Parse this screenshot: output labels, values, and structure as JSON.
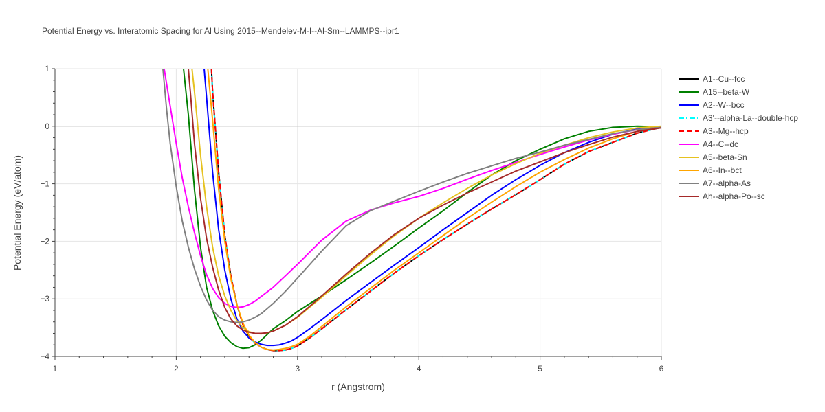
{
  "chart_data": {
    "type": "line",
    "title": "Potential Energy vs. Interatomic Spacing for Al Using 2015--Mendelev-M-I--Al-Sm--LAMMPS--ipr1",
    "xlabel": "r (Angstrom)",
    "ylabel": "Potential Energy (eV/atom)",
    "xlim": [
      1,
      6
    ],
    "ylim": [
      -4,
      1
    ],
    "xticks": [
      1,
      2,
      3,
      4,
      5,
      6
    ],
    "yticks": [
      1,
      0,
      -1,
      -2,
      -3,
      -4
    ],
    "grid": true,
    "legend_position": "right",
    "series": [
      {
        "name": "A1--Cu--fcc",
        "color": "#000000",
        "dash": "solid",
        "x": [
          2.29,
          2.3,
          2.35,
          2.4,
          2.45,
          2.5,
          2.55,
          2.6,
          2.65,
          2.7,
          2.75,
          2.8,
          2.85,
          2.9,
          2.95,
          3.0,
          3.1,
          3.2,
          3.4,
          3.6,
          3.8,
          4.0,
          4.2,
          4.4,
          4.6,
          4.8,
          5.0,
          5.2,
          5.4,
          5.6,
          5.8,
          6.0
        ],
        "y": [
          1.0,
          0.6,
          -0.8,
          -1.9,
          -2.6,
          -3.1,
          -3.45,
          -3.65,
          -3.77,
          -3.84,
          -3.88,
          -3.9,
          -3.9,
          -3.89,
          -3.86,
          -3.82,
          -3.68,
          -3.52,
          -3.19,
          -2.87,
          -2.55,
          -2.25,
          -1.97,
          -1.7,
          -1.44,
          -1.19,
          -0.93,
          -0.66,
          -0.44,
          -0.28,
          -0.12,
          -0.02
        ]
      },
      {
        "name": "A15--beta-W",
        "color": "#008000",
        "dash": "solid",
        "x": [
          2.06,
          2.1,
          2.15,
          2.2,
          2.25,
          2.3,
          2.35,
          2.4,
          2.45,
          2.5,
          2.55,
          2.6,
          2.65,
          2.7,
          2.75,
          2.8,
          2.9,
          3.0,
          3.2,
          3.4,
          3.6,
          3.8,
          4.0,
          4.2,
          4.4,
          4.6,
          4.8,
          5.0,
          5.2,
          5.4,
          5.6,
          5.8,
          6.0
        ],
        "y": [
          1.0,
          0.2,
          -1.1,
          -2.1,
          -2.8,
          -3.2,
          -3.47,
          -3.65,
          -3.76,
          -3.83,
          -3.86,
          -3.85,
          -3.8,
          -3.72,
          -3.62,
          -3.52,
          -3.38,
          -3.22,
          -2.95,
          -2.67,
          -2.38,
          -2.08,
          -1.77,
          -1.47,
          -1.15,
          -0.85,
          -0.6,
          -0.4,
          -0.22,
          -0.09,
          -0.02,
          0.0,
          -0.01
        ]
      },
      {
        "name": "A2--W--bcc",
        "color": "#0000ff",
        "dash": "solid",
        "x": [
          2.23,
          2.25,
          2.3,
          2.35,
          2.4,
          2.45,
          2.5,
          2.55,
          2.6,
          2.65,
          2.7,
          2.75,
          2.8,
          2.85,
          2.9,
          2.95,
          3.0,
          3.1,
          3.2,
          3.4,
          3.6,
          3.8,
          4.0,
          4.2,
          4.4,
          4.6,
          4.8,
          5.0,
          5.2,
          5.4,
          5.6,
          5.8,
          6.0
        ],
        "y": [
          1.0,
          0.5,
          -0.8,
          -1.8,
          -2.5,
          -3.0,
          -3.35,
          -3.56,
          -3.68,
          -3.75,
          -3.79,
          -3.81,
          -3.81,
          -3.8,
          -3.77,
          -3.73,
          -3.67,
          -3.52,
          -3.36,
          -3.03,
          -2.72,
          -2.41,
          -2.11,
          -1.8,
          -1.5,
          -1.2,
          -0.93,
          -0.68,
          -0.46,
          -0.28,
          -0.14,
          -0.05,
          -0.01
        ]
      },
      {
        "name": "A3'--alpha-La--double-hcp",
        "color": "#00ffff",
        "dash": "dashdot",
        "x": [
          2.29,
          2.3,
          2.35,
          2.4,
          2.45,
          2.5,
          2.55,
          2.6,
          2.65,
          2.7,
          2.75,
          2.8,
          2.85,
          2.9,
          2.95,
          3.0,
          3.1,
          3.2,
          3.4,
          3.6,
          3.8,
          4.0,
          4.2,
          4.4,
          4.6,
          4.8,
          5.0,
          5.2,
          5.4,
          5.6,
          5.8,
          6.0
        ],
        "y": [
          1.0,
          0.6,
          -0.8,
          -1.9,
          -2.6,
          -3.1,
          -3.45,
          -3.65,
          -3.77,
          -3.84,
          -3.88,
          -3.9,
          -3.9,
          -3.89,
          -3.86,
          -3.82,
          -3.68,
          -3.52,
          -3.19,
          -2.87,
          -2.55,
          -2.25,
          -1.97,
          -1.7,
          -1.44,
          -1.19,
          -0.93,
          -0.66,
          -0.44,
          -0.28,
          -0.12,
          -0.02
        ]
      },
      {
        "name": "A3--Mg--hcp",
        "color": "#ff0000",
        "dash": "dash",
        "x": [
          2.29,
          2.3,
          2.35,
          2.4,
          2.45,
          2.5,
          2.55,
          2.6,
          2.65,
          2.7,
          2.75,
          2.8,
          2.85,
          2.9,
          2.95,
          3.0,
          3.1,
          3.2,
          3.4,
          3.6,
          3.8,
          4.0,
          4.2,
          4.4,
          4.6,
          4.8,
          5.0,
          5.2,
          5.4,
          5.6,
          5.8,
          6.0
        ],
        "y": [
          1.0,
          0.6,
          -0.8,
          -1.9,
          -2.6,
          -3.1,
          -3.45,
          -3.65,
          -3.77,
          -3.84,
          -3.88,
          -3.9,
          -3.9,
          -3.89,
          -3.86,
          -3.82,
          -3.68,
          -3.52,
          -3.19,
          -2.87,
          -2.55,
          -2.25,
          -1.97,
          -1.7,
          -1.44,
          -1.19,
          -0.93,
          -0.66,
          -0.44,
          -0.28,
          -0.12,
          -0.02
        ]
      },
      {
        "name": "A4--C--dc",
        "color": "#ff00ff",
        "dash": "solid",
        "x": [
          1.9,
          1.95,
          2.0,
          2.05,
          2.1,
          2.15,
          2.2,
          2.25,
          2.3,
          2.35,
          2.4,
          2.45,
          2.5,
          2.55,
          2.6,
          2.65,
          2.7,
          2.8,
          2.9,
          3.0,
          3.1,
          3.2,
          3.4,
          3.6,
          3.8,
          4.0,
          4.2,
          4.4,
          4.6,
          4.8,
          5.0,
          5.2,
          5.4,
          5.6,
          5.8,
          6.0
        ],
        "y": [
          1.0,
          0.35,
          -0.3,
          -0.9,
          -1.4,
          -1.85,
          -2.25,
          -2.58,
          -2.82,
          -2.98,
          -3.08,
          -3.13,
          -3.15,
          -3.14,
          -3.1,
          -3.04,
          -2.96,
          -2.8,
          -2.6,
          -2.4,
          -2.19,
          -1.98,
          -1.65,
          -1.46,
          -1.33,
          -1.22,
          -1.08,
          -0.92,
          -0.77,
          -0.63,
          -0.49,
          -0.36,
          -0.24,
          -0.14,
          -0.06,
          -0.02
        ]
      },
      {
        "name": "A5--beta-Sn",
        "color": "#e6c220",
        "dash": "solid",
        "x": [
          2.13,
          2.15,
          2.2,
          2.25,
          2.3,
          2.35,
          2.4,
          2.45,
          2.5,
          2.55,
          2.6,
          2.65,
          2.7,
          2.75,
          2.8,
          2.9,
          3.0,
          3.2,
          3.4,
          3.6,
          3.8,
          4.0,
          4.2,
          4.4,
          4.6,
          4.8,
          5.0,
          5.2,
          5.4,
          5.6,
          5.8,
          6.0
        ],
        "y": [
          1.0,
          0.6,
          -0.5,
          -1.4,
          -2.1,
          -2.6,
          -2.95,
          -3.2,
          -3.38,
          -3.5,
          -3.57,
          -3.6,
          -3.61,
          -3.59,
          -3.56,
          -3.46,
          -3.32,
          -2.97,
          -2.6,
          -2.24,
          -1.9,
          -1.6,
          -1.33,
          -1.08,
          -0.85,
          -0.65,
          -0.47,
          -0.33,
          -0.2,
          -0.1,
          -0.03,
          0.0
        ]
      },
      {
        "name": "A6--In--bct",
        "color": "#ffa500",
        "dash": "solid",
        "x": [
          2.26,
          2.3,
          2.35,
          2.4,
          2.45,
          2.5,
          2.55,
          2.6,
          2.65,
          2.7,
          2.75,
          2.8,
          2.85,
          2.9,
          2.95,
          3.0,
          3.1,
          3.2,
          3.4,
          3.6,
          3.8,
          4.0,
          4.2,
          4.4,
          4.6,
          4.8,
          5.0,
          5.2,
          5.4,
          5.6,
          5.8,
          6.0
        ],
        "y": [
          1.0,
          0.1,
          -1.1,
          -2.0,
          -2.65,
          -3.1,
          -3.42,
          -3.63,
          -3.76,
          -3.84,
          -3.88,
          -3.89,
          -3.88,
          -3.86,
          -3.83,
          -3.79,
          -3.65,
          -3.48,
          -3.14,
          -2.82,
          -2.5,
          -2.2,
          -1.9,
          -1.6,
          -1.32,
          -1.05,
          -0.8,
          -0.58,
          -0.38,
          -0.22,
          -0.09,
          -0.02
        ]
      },
      {
        "name": "A7--alpha-As",
        "color": "#808080",
        "dash": "solid",
        "x": [
          1.89,
          1.92,
          1.95,
          2.0,
          2.05,
          2.1,
          2.15,
          2.2,
          2.25,
          2.3,
          2.35,
          2.4,
          2.45,
          2.5,
          2.55,
          2.6,
          2.65,
          2.7,
          2.8,
          2.9,
          3.0,
          3.2,
          3.4,
          3.6,
          3.8,
          4.0,
          4.2,
          4.4,
          4.6,
          4.8,
          5.0,
          5.2,
          5.4,
          5.6,
          5.8,
          6.0
        ],
        "y": [
          1.0,
          0.3,
          -0.3,
          -1.05,
          -1.65,
          -2.1,
          -2.48,
          -2.78,
          -3.02,
          -3.2,
          -3.31,
          -3.37,
          -3.4,
          -3.41,
          -3.4,
          -3.37,
          -3.32,
          -3.26,
          -3.08,
          -2.87,
          -2.64,
          -2.17,
          -1.73,
          -1.47,
          -1.3,
          -1.13,
          -0.97,
          -0.82,
          -0.69,
          -0.56,
          -0.45,
          -0.33,
          -0.23,
          -0.13,
          -0.06,
          -0.02
        ]
      },
      {
        "name": "Ah--alpha-Po--sc",
        "color": "#a52a2a",
        "dash": "solid",
        "x": [
          2.1,
          2.12,
          2.15,
          2.2,
          2.25,
          2.3,
          2.35,
          2.4,
          2.45,
          2.5,
          2.55,
          2.6,
          2.65,
          2.7,
          2.75,
          2.8,
          2.9,
          3.0,
          3.2,
          3.4,
          3.6,
          3.8,
          4.0,
          4.2,
          4.4,
          4.6,
          4.8,
          5.0,
          5.2,
          5.4,
          5.6,
          5.8,
          6.0
        ],
        "y": [
          1.0,
          0.5,
          -0.3,
          -1.25,
          -1.95,
          -2.45,
          -2.85,
          -3.15,
          -3.35,
          -3.47,
          -3.54,
          -3.58,
          -3.6,
          -3.6,
          -3.59,
          -3.56,
          -3.46,
          -3.31,
          -2.95,
          -2.57,
          -2.21,
          -1.88,
          -1.6,
          -1.37,
          -1.16,
          -0.97,
          -0.78,
          -0.62,
          -0.46,
          -0.32,
          -0.19,
          -0.09,
          -0.03
        ]
      }
    ]
  }
}
